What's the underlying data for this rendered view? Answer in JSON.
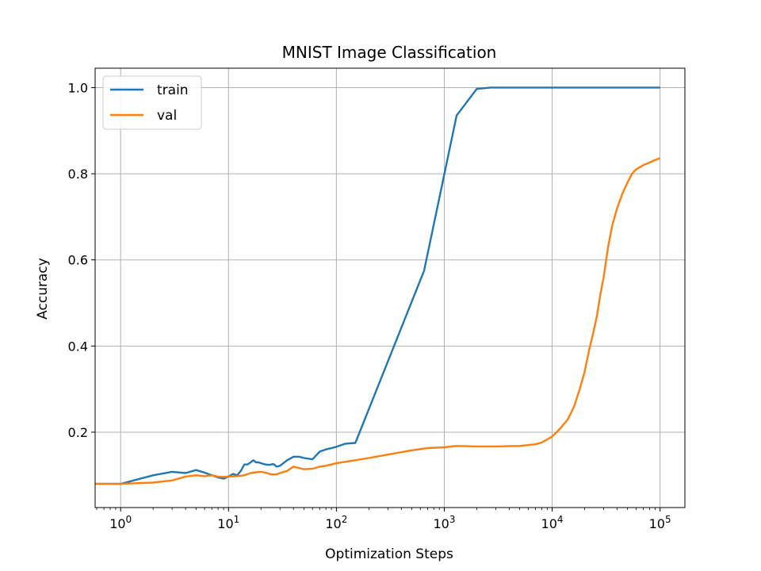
{
  "chart_data": {
    "type": "line",
    "title": "MNIST Image Classification",
    "xlabel": "Optimization Steps",
    "ylabel": "Accuracy",
    "xscale": "log",
    "xlim": [
      0.58,
      170000
    ],
    "ylim": [
      0.025,
      1.045
    ],
    "x_ticks": [
      {
        "value": 1,
        "base": "10",
        "exp": "0"
      },
      {
        "value": 10,
        "base": "10",
        "exp": "1"
      },
      {
        "value": 100,
        "base": "10",
        "exp": "2"
      },
      {
        "value": 1000,
        "base": "10",
        "exp": "3"
      },
      {
        "value": 10000,
        "base": "10",
        "exp": "4"
      },
      {
        "value": 100000,
        "base": "10",
        "exp": "5"
      }
    ],
    "y_ticks": [
      {
        "value": 0.2,
        "label": "0.2"
      },
      {
        "value": 0.4,
        "label": "0.4"
      },
      {
        "value": 0.6,
        "label": "0.6"
      },
      {
        "value": 0.8,
        "label": "0.8"
      },
      {
        "value": 1.0,
        "label": "1.0"
      }
    ],
    "grid": true,
    "legend": "upper-left",
    "series": [
      {
        "name": "train",
        "color": "#1f77b4",
        "x": [
          0.58,
          1,
          2,
          3,
          4,
          5,
          6,
          7,
          8,
          9,
          10,
          11,
          12,
          13,
          14,
          15,
          16,
          17,
          18,
          19,
          20,
          22,
          24,
          26,
          28,
          30,
          35,
          40,
          45,
          50,
          60,
          70,
          80,
          90,
          100,
          120,
          150,
          650,
          1300,
          2000,
          2700,
          5000,
          10000,
          30000,
          100000
        ],
        "y": [
          0.08,
          0.08,
          0.1,
          0.108,
          0.105,
          0.112,
          0.106,
          0.1,
          0.095,
          0.092,
          0.097,
          0.103,
          0.1,
          0.11,
          0.125,
          0.125,
          0.13,
          0.135,
          0.13,
          0.13,
          0.128,
          0.125,
          0.124,
          0.126,
          0.12,
          0.122,
          0.135,
          0.143,
          0.143,
          0.14,
          0.137,
          0.155,
          0.16,
          0.163,
          0.166,
          0.173,
          0.175,
          0.575,
          0.935,
          0.997,
          1.0,
          1.0,
          1.0,
          1.0,
          1.0
        ]
      },
      {
        "name": "val",
        "color": "#ff7f0e",
        "x": [
          0.58,
          1,
          2,
          3,
          4,
          5,
          6,
          7,
          8,
          9,
          10,
          12,
          14,
          16,
          18,
          20,
          22,
          25,
          28,
          30,
          35,
          40,
          50,
          60,
          70,
          80,
          100,
          150,
          200,
          300,
          500,
          700,
          1000,
          1300,
          2000,
          3000,
          5000,
          7000,
          8000,
          10000,
          11000,
          12000,
          14000,
          16000,
          18000,
          20000,
          22000,
          24000,
          26000,
          28000,
          30000,
          33000,
          36000,
          40000,
          45000,
          50000,
          55000,
          60000,
          70000,
          80000,
          90000,
          100000
        ],
        "y": [
          0.08,
          0.08,
          0.083,
          0.088,
          0.097,
          0.1,
          0.098,
          0.1,
          0.097,
          0.096,
          0.097,
          0.098,
          0.1,
          0.105,
          0.107,
          0.108,
          0.106,
          0.102,
          0.102,
          0.105,
          0.11,
          0.12,
          0.114,
          0.115,
          0.12,
          0.122,
          0.128,
          0.135,
          0.14,
          0.148,
          0.158,
          0.163,
          0.165,
          0.168,
          0.167,
          0.167,
          0.168,
          0.172,
          0.176,
          0.19,
          0.2,
          0.21,
          0.23,
          0.26,
          0.3,
          0.34,
          0.39,
          0.43,
          0.47,
          0.52,
          0.56,
          0.63,
          0.68,
          0.72,
          0.755,
          0.78,
          0.8,
          0.81,
          0.82,
          0.826,
          0.832,
          0.836
        ]
      }
    ]
  }
}
